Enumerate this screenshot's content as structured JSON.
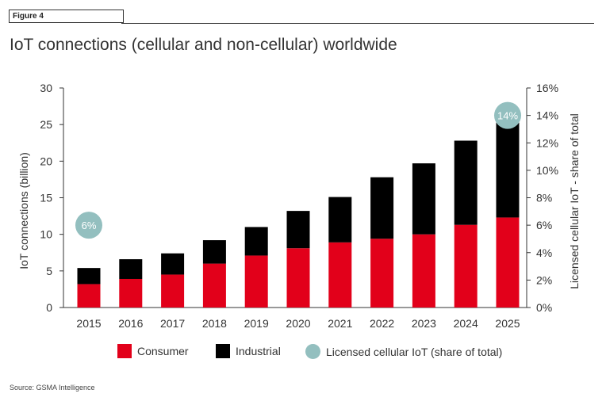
{
  "figure_label": "Figure 4",
  "title": "IoT connections (cellular and non-cellular) worldwide",
  "source": "Source: GSMA Intelligence",
  "colors": {
    "consumer": "#e2001a",
    "industrial": "#000000",
    "licensed": "#93bfbf"
  },
  "legend": {
    "consumer": "Consumer",
    "industrial": "Industrial",
    "licensed": "Licensed cellular IoT (share of total)"
  },
  "chart_data": {
    "type": "bar",
    "stacked": true,
    "categories": [
      "2015",
      "2016",
      "2017",
      "2018",
      "2019",
      "2020",
      "2021",
      "2022",
      "2023",
      "2024",
      "2025"
    ],
    "series": [
      {
        "name": "Consumer",
        "values": [
          3.2,
          3.9,
          4.5,
          6.0,
          7.1,
          8.1,
          8.9,
          9.4,
          10.0,
          11.3,
          12.3
        ]
      },
      {
        "name": "Industrial",
        "values": [
          2.2,
          2.7,
          2.9,
          3.2,
          3.9,
          5.1,
          6.2,
          8.4,
          9.7,
          11.5,
          13.0
        ]
      }
    ],
    "annotations": [
      {
        "category": "2015",
        "value": 6,
        "label": "6%"
      },
      {
        "category": "2025",
        "value": 14,
        "label": "14%"
      }
    ],
    "ylabel": "IoT connections (billion)",
    "ylim": [
      0,
      30
    ],
    "yticks": [
      "0",
      "5",
      "10",
      "15",
      "20",
      "25",
      "30"
    ],
    "y2label": "Licensed cellular IoT - share of total",
    "y2lim": [
      0,
      16
    ],
    "y2ticks": [
      "0%",
      "2%",
      "4%",
      "6%",
      "8%",
      "10%",
      "12%",
      "14%",
      "16%"
    ],
    "grid": false,
    "legend_position": "bottom"
  }
}
